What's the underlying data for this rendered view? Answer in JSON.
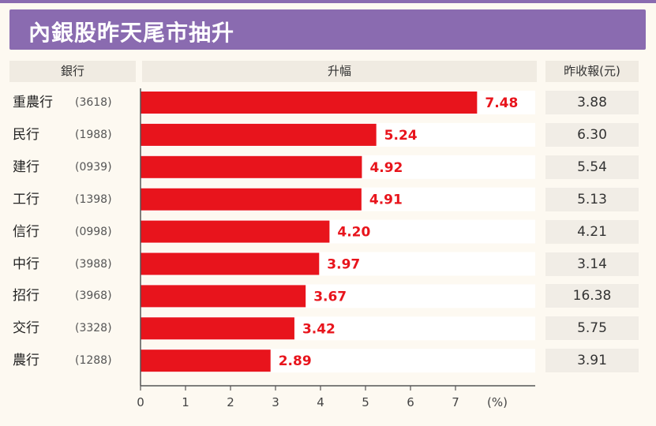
{
  "title": "內銀股昨天尾市抽升",
  "headers": {
    "stock": "銀行",
    "change": "升幅",
    "close": "昨收報(元)"
  },
  "colors": {
    "bar": "#e8141c",
    "value_label": "#e8141c",
    "banner": "#8a6bb0"
  },
  "chart_data": {
    "type": "bar",
    "orientation": "horizontal",
    "title": "內銀股昨天尾市抽升",
    "categories": [
      "重農行",
      "民行",
      "建行",
      "工行",
      "信行",
      "中行",
      "招行",
      "交行",
      "農行"
    ],
    "codes": [
      "(3618)",
      "(1988)",
      "(0939)",
      "(1398)",
      "(0998)",
      "(3988)",
      "(3968)",
      "(3328)",
      "(1288)"
    ],
    "values": [
      7.48,
      5.24,
      4.92,
      4.91,
      4.2,
      3.97,
      3.67,
      3.42,
      2.89
    ],
    "value_labels": [
      "7.48",
      "5.24",
      "4.92",
      "4.91",
      "4.20",
      "3.97",
      "3.67",
      "3.42",
      "2.89"
    ],
    "close_prices": [
      "3.88",
      "6.30",
      "5.54",
      "5.13",
      "4.21",
      "3.14",
      "16.38",
      "5.75",
      "3.91"
    ],
    "xticks": [
      "0",
      "1",
      "2",
      "3",
      "4",
      "5",
      "6",
      "7"
    ],
    "xunit": "(%)",
    "xlim": [
      0,
      8.8
    ],
    "grid": false
  }
}
